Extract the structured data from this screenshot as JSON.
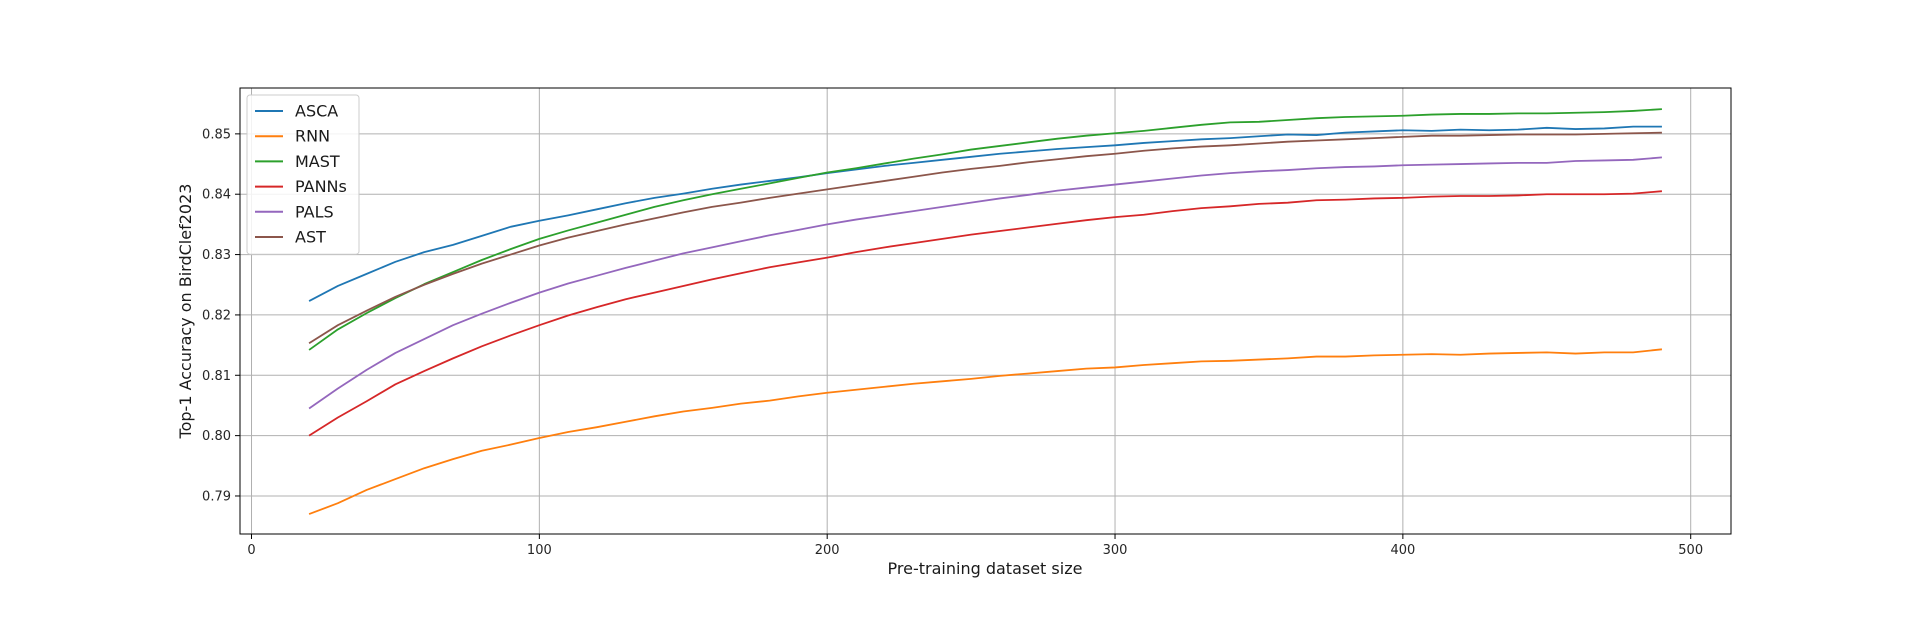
{
  "chart_data": {
    "type": "line",
    "title": "",
    "xlabel": "Pre-training dataset size",
    "ylabel": "Top-1 Accuracy on BirdClef2023",
    "xlim": [
      -4,
      514
    ],
    "ylim": [
      0.7837,
      0.8576
    ],
    "xticks": [
      0,
      100,
      200,
      300,
      400,
      500
    ],
    "xtick_labels": [
      "0",
      "100",
      "200",
      "300",
      "400",
      "500"
    ],
    "yticks": [
      0.79,
      0.8,
      0.81,
      0.82,
      0.83,
      0.84,
      0.85
    ],
    "ytick_labels": [
      "0.79",
      "0.80",
      "0.81",
      "0.82",
      "0.83",
      "0.84",
      "0.85"
    ],
    "grid": true,
    "legend_position": "top-left",
    "x": [
      20,
      30,
      40,
      50,
      60,
      70,
      80,
      90,
      100,
      110,
      120,
      130,
      140,
      150,
      160,
      170,
      180,
      190,
      200,
      210,
      220,
      230,
      240,
      250,
      260,
      270,
      280,
      290,
      300,
      310,
      320,
      330,
      340,
      350,
      360,
      370,
      380,
      390,
      400,
      410,
      420,
      430,
      440,
      450,
      460,
      470,
      480,
      490
    ],
    "series": [
      {
        "name": "ASCA",
        "color": "#1f77b4",
        "values": [
          0.8223,
          0.8248,
          0.8268,
          0.8288,
          0.8304,
          0.8316,
          0.8331,
          0.8346,
          0.8356,
          0.8365,
          0.8375,
          0.8385,
          0.8394,
          0.8401,
          0.8409,
          0.8416,
          0.8422,
          0.8428,
          0.8435,
          0.8441,
          0.8447,
          0.8452,
          0.8457,
          0.8462,
          0.8467,
          0.8471,
          0.8475,
          0.8478,
          0.8481,
          0.8485,
          0.8488,
          0.8491,
          0.8493,
          0.8496,
          0.8499,
          0.8498,
          0.8502,
          0.8504,
          0.8506,
          0.8505,
          0.8507,
          0.8506,
          0.8507,
          0.851,
          0.8508,
          0.8509,
          0.8512,
          0.8512
        ]
      },
      {
        "name": "RNN",
        "color": "#ff7f0e",
        "values": [
          0.787,
          0.7888,
          0.791,
          0.7928,
          0.7946,
          0.7961,
          0.7975,
          0.7985,
          0.7996,
          0.8006,
          0.8014,
          0.8023,
          0.8032,
          0.804,
          0.8046,
          0.8053,
          0.8058,
          0.8065,
          0.8071,
          0.8076,
          0.8081,
          0.8086,
          0.809,
          0.8094,
          0.8099,
          0.8103,
          0.8107,
          0.8111,
          0.8113,
          0.8117,
          0.812,
          0.8123,
          0.8124,
          0.8126,
          0.8128,
          0.8131,
          0.8131,
          0.8133,
          0.8134,
          0.8135,
          0.8134,
          0.8136,
          0.8137,
          0.8138,
          0.8136,
          0.8138,
          0.8138,
          0.8143
        ]
      },
      {
        "name": "MAST",
        "color": "#2ca02c",
        "values": [
          0.8142,
          0.8176,
          0.8203,
          0.8228,
          0.8251,
          0.8271,
          0.8291,
          0.8309,
          0.8326,
          0.834,
          0.8353,
          0.8366,
          0.8379,
          0.839,
          0.84,
          0.8409,
          0.8418,
          0.8427,
          0.8436,
          0.8443,
          0.8451,
          0.8459,
          0.8466,
          0.8474,
          0.848,
          0.8486,
          0.8492,
          0.8497,
          0.8501,
          0.8505,
          0.851,
          0.8515,
          0.8519,
          0.852,
          0.8523,
          0.8526,
          0.8528,
          0.8529,
          0.853,
          0.8532,
          0.8533,
          0.8533,
          0.8534,
          0.8534,
          0.8535,
          0.8536,
          0.8538,
          0.8541
        ]
      },
      {
        "name": "PANNs",
        "color": "#d62728",
        "values": [
          0.8,
          0.803,
          0.8057,
          0.8085,
          0.8107,
          0.8128,
          0.8148,
          0.8166,
          0.8183,
          0.8199,
          0.8213,
          0.8226,
          0.8237,
          0.8248,
          0.8259,
          0.8269,
          0.8279,
          0.8287,
          0.8295,
          0.8304,
          0.8312,
          0.8319,
          0.8326,
          0.8333,
          0.8339,
          0.8345,
          0.8351,
          0.8357,
          0.8362,
          0.8366,
          0.8372,
          0.8377,
          0.838,
          0.8384,
          0.8386,
          0.839,
          0.8391,
          0.8393,
          0.8394,
          0.8396,
          0.8397,
          0.8397,
          0.8398,
          0.84,
          0.84,
          0.84,
          0.8401,
          0.8405
        ]
      },
      {
        "name": "PALS",
        "color": "#9467bd",
        "values": [
          0.8045,
          0.8078,
          0.8109,
          0.8137,
          0.816,
          0.8183,
          0.8202,
          0.822,
          0.8237,
          0.8252,
          0.8265,
          0.8278,
          0.829,
          0.8302,
          0.8312,
          0.8322,
          0.8332,
          0.8341,
          0.835,
          0.8358,
          0.8365,
          0.8372,
          0.8379,
          0.8386,
          0.8393,
          0.8399,
          0.8406,
          0.8411,
          0.8416,
          0.8421,
          0.8426,
          0.8431,
          0.8435,
          0.8438,
          0.844,
          0.8443,
          0.8445,
          0.8446,
          0.8448,
          0.8449,
          0.845,
          0.8451,
          0.8452,
          0.8452,
          0.8455,
          0.8456,
          0.8457,
          0.8461
        ]
      },
      {
        "name": "AST",
        "color": "#8c564b",
        "values": [
          0.8153,
          0.8183,
          0.8207,
          0.823,
          0.825,
          0.8268,
          0.8285,
          0.83,
          0.8315,
          0.8328,
          0.8339,
          0.835,
          0.836,
          0.837,
          0.8379,
          0.8386,
          0.8394,
          0.8401,
          0.8408,
          0.8415,
          0.8422,
          0.8429,
          0.8436,
          0.8442,
          0.8447,
          0.8453,
          0.8458,
          0.8463,
          0.8467,
          0.8472,
          0.8476,
          0.8479,
          0.8481,
          0.8484,
          0.8487,
          0.8489,
          0.8491,
          0.8493,
          0.8495,
          0.8497,
          0.8497,
          0.8498,
          0.8499,
          0.8499,
          0.8499,
          0.85,
          0.8501,
          0.8502
        ]
      }
    ]
  }
}
